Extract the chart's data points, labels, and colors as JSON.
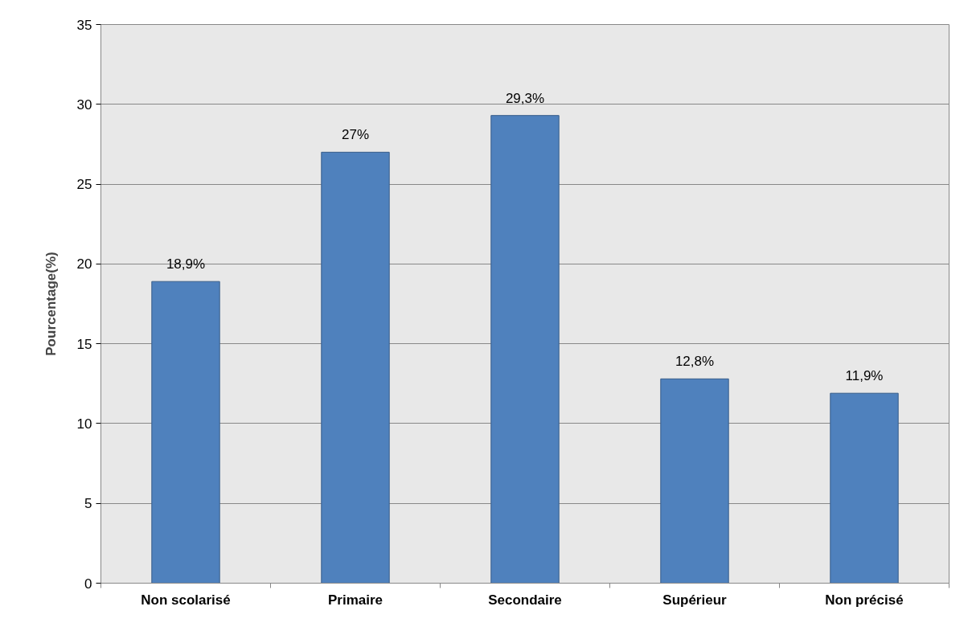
{
  "chart_data": {
    "type": "bar",
    "ylabel": "Pourcentage(%)",
    "categories": [
      "Non scolarisé",
      "Primaire",
      "Secondaire",
      "Supérieur",
      "Non précisé"
    ],
    "values": [
      18.9,
      27,
      29.3,
      12.8,
      11.9
    ],
    "value_labels": [
      "18,9%",
      "27%",
      "29,3%",
      "12,8%",
      "11,9%"
    ],
    "color": "#4f81bd",
    "ylim": [
      0,
      35
    ],
    "yticks": [
      0,
      5,
      10,
      15,
      20,
      25,
      30,
      35
    ],
    "grid": "y"
  }
}
